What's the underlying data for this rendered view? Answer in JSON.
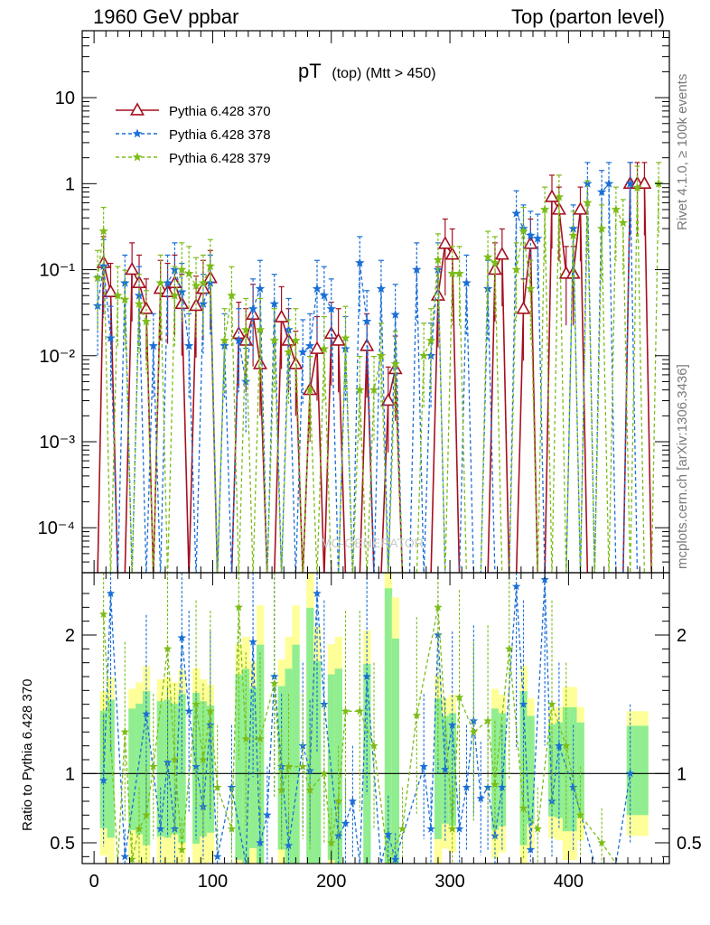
{
  "header": {
    "left": "1960 GeV ppbar",
    "right": "Top (parton level)"
  },
  "side": {
    "top": "Rivet 4.1.0, ≥ 100k events",
    "bottom": "mcplots.cern.ch [arXiv:1306.3436]"
  },
  "colors": {
    "s370": "#a50f1f",
    "s378": "#1a6fd6",
    "s379": "#7cbc18",
    "band_green": "#90ee90",
    "band_yellow": "#ffff99"
  },
  "chart_data": [
    {
      "type": "line",
      "panel": "main",
      "title_main": "pT",
      "title_sub": "(top) (Mtt > 450)",
      "yscale": "log",
      "xlim": [
        -10,
        485
      ],
      "ylim": [
        3e-05,
        60
      ],
      "x_ticks": [
        "0",
        "100",
        "200",
        "300",
        "400"
      ],
      "y_ticks": [
        "10",
        "1",
        "10⁻¹",
        "10⁻²",
        "10⁻³",
        "10⁻⁴"
      ],
      "legend": [
        "Pythia 6.428 370",
        "Pythia 6.428 378",
        "Pythia 6.428 379"
      ],
      "watermark": "MC-GENERATOR",
      "series": [
        {
          "name": "Pythia 6.428 370",
          "x": [
            3,
            8,
            14,
            20,
            26,
            32,
            38,
            44,
            50,
            56,
            62,
            68,
            74,
            80,
            86,
            92,
            98,
            104,
            110,
            116,
            122,
            128,
            134,
            140,
            146,
            152,
            158,
            164,
            170,
            176,
            182,
            188,
            194,
            200,
            206,
            212,
            218,
            224,
            230,
            236,
            242,
            248,
            254,
            260,
            266,
            272,
            278,
            284,
            290,
            296,
            302,
            308,
            314,
            320,
            326,
            332,
            338,
            344,
            350,
            356,
            362,
            368,
            374,
            380,
            386,
            392,
            398,
            404,
            410,
            416,
            422,
            428,
            434,
            440,
            446,
            452,
            458,
            464,
            470,
            476
          ],
          "values": [
            0,
            0.12,
            0.055,
            0,
            0,
            0.1,
            0.07,
            0.035,
            0,
            0.06,
            0.055,
            0.07,
            0.04,
            0,
            0.038,
            0.06,
            0.08,
            0,
            0,
            0,
            0.018,
            0.015,
            0.03,
            0.008,
            0,
            0,
            0.028,
            0.015,
            0.008,
            0,
            0.004,
            0.012,
            0,
            0.018,
            0.015,
            0,
            0,
            0,
            0.013,
            0,
            0,
            0.003,
            0.007,
            0,
            0,
            0,
            0,
            0,
            0.05,
            0.2,
            0.15,
            0,
            0,
            0,
            0,
            0,
            0.1,
            0.15,
            0,
            0,
            0.035,
            0.2,
            0,
            0,
            0.7,
            0.5,
            0.09,
            0.09,
            0.5,
            0,
            0,
            0,
            0,
            0,
            0,
            1,
            1,
            1,
            0,
            0
          ]
        },
        {
          "name": "Pythia 6.428 378",
          "x": [
            3,
            8,
            14,
            20,
            26,
            32,
            38,
            44,
            50,
            56,
            62,
            68,
            74,
            80,
            86,
            92,
            98,
            104,
            110,
            116,
            122,
            128,
            134,
            140,
            146,
            152,
            158,
            164,
            170,
            176,
            182,
            188,
            194,
            200,
            206,
            212,
            218,
            224,
            230,
            236,
            242,
            248,
            254,
            260,
            266,
            272,
            278,
            284,
            290,
            296,
            302,
            308,
            314,
            320,
            326,
            332,
            338,
            344,
            350,
            356,
            362,
            368,
            374,
            380,
            386,
            392,
            398,
            404,
            410,
            416,
            422,
            428,
            434,
            440,
            446,
            452,
            458,
            464,
            470,
            476
          ],
          "values": [
            0.038,
            0.11,
            0.016,
            0,
            0.07,
            0,
            0.05,
            0,
            0.013,
            0,
            0.07,
            0.1,
            0.055,
            0.013,
            0,
            0.04,
            0.07,
            0,
            0.013,
            0,
            0.015,
            0.005,
            0.035,
            0.06,
            0,
            0.04,
            0,
            0.02,
            0,
            0.011,
            0.013,
            0.06,
            0.05,
            0.035,
            0,
            0.012,
            0,
            0.12,
            0.025,
            0,
            0.06,
            0,
            0.03,
            0,
            0,
            0.1,
            0,
            0.01,
            0.1,
            0,
            0,
            0,
            0.07,
            0,
            0,
            0.06,
            0,
            0,
            0,
            0.45,
            0.3,
            0.25,
            0.23,
            0,
            0,
            0,
            0,
            0.3,
            0,
            1,
            0,
            0.8,
            1,
            0,
            0,
            1,
            0,
            0,
            0,
            0
          ]
        },
        {
          "name": "Pythia 6.428 379",
          "x": [
            3,
            8,
            14,
            20,
            26,
            32,
            38,
            44,
            50,
            56,
            62,
            68,
            74,
            80,
            86,
            92,
            98,
            104,
            110,
            116,
            122,
            128,
            134,
            140,
            146,
            152,
            158,
            164,
            170,
            176,
            182,
            188,
            194,
            200,
            206,
            212,
            218,
            224,
            230,
            236,
            242,
            248,
            254,
            260,
            266,
            272,
            278,
            284,
            290,
            296,
            302,
            308,
            314,
            320,
            326,
            332,
            338,
            344,
            350,
            356,
            362,
            368,
            374,
            380,
            386,
            392,
            398,
            404,
            410,
            416,
            422,
            428,
            434,
            440,
            446,
            452,
            458,
            464,
            470,
            476
          ],
          "values": [
            0.08,
            0.28,
            0,
            0.05,
            0.045,
            0,
            0.04,
            0.025,
            0,
            0.07,
            0,
            0.05,
            0.1,
            0.09,
            0.065,
            0.07,
            0.11,
            0,
            0.015,
            0.05,
            0,
            0.02,
            0,
            0.02,
            0,
            0.015,
            0,
            0.011,
            0.015,
            0,
            0.004,
            0,
            0.012,
            0,
            0,
            0.016,
            0,
            0.004,
            0,
            0.004,
            0.01,
            0,
            0.008,
            0,
            0,
            0,
            0.01,
            0.015,
            0.13,
            0,
            0.09,
            0.09,
            0,
            0,
            0,
            0.14,
            0.12,
            0,
            0,
            0.1,
            0.28,
            0.06,
            0,
            0.5,
            0,
            0.7,
            0,
            0.25,
            0,
            0.6,
            0,
            0.3,
            0,
            0.5,
            0.35,
            0,
            0.9,
            0,
            0,
            1
          ]
        }
      ]
    },
    {
      "type": "line",
      "panel": "ratio",
      "ylabel": "Ratio to Pythia 6.428 370",
      "xlim": [
        -10,
        485
      ],
      "ylim": [
        0.35,
        2.45
      ],
      "y_ticks": [
        "2",
        "1",
        "0.5"
      ],
      "reference": 1,
      "series": [
        {
          "name": "Pythia 6.428 378",
          "x": [
            8,
            14,
            26,
            44,
            56,
            62,
            68,
            74,
            80,
            86,
            92,
            98,
            104,
            116,
            128,
            134,
            140,
            146,
            152,
            158,
            164,
            176,
            182,
            188,
            194,
            206,
            212,
            218,
            224,
            230,
            242,
            248,
            254,
            278,
            284,
            290,
            296,
            302,
            308,
            314,
            320,
            326,
            332,
            338,
            344,
            356,
            362,
            368,
            380,
            386,
            392,
            404,
            422,
            440,
            452
          ],
          "values": [
            0.95,
            2.3,
            0.4,
            1.43,
            0.6,
            1.08,
            0.6,
            1.98,
            1.45,
            1.05,
            0.76,
            1.35,
            0.4,
            0.9,
            0.35,
            1.95,
            0.5,
            0.7,
            1.7,
            1.05,
            0.48,
            1.2,
            1.02,
            2.3,
            1.5,
            0.55,
            0.64,
            0.8,
            0.35,
            1.7,
            0.35,
            0.56,
            0.38,
            1.05,
            0.6,
            2.0,
            1.03,
            1.35,
            0.6,
            0.9,
            1.38,
            0.82,
            0.9,
            0.55,
            0.9,
            2.35,
            1.5,
            0.45,
            2.4,
            0.8,
            1.2,
            0.9,
            0.35,
            0.35,
            1.0
          ]
        },
        {
          "name": "Pythia 6.428 379",
          "x": [
            8,
            20,
            26,
            32,
            38,
            44,
            50,
            62,
            68,
            74,
            86,
            92,
            98,
            104,
            116,
            122,
            128,
            140,
            152,
            158,
            164,
            176,
            182,
            194,
            200,
            206,
            212,
            224,
            236,
            248,
            260,
            272,
            290,
            302,
            308,
            320,
            332,
            338,
            350,
            362,
            374,
            386,
            398,
            410,
            428,
            440,
            452
          ],
          "values": [
            2.15,
            0.35,
            1.3,
            0.38,
            0.6,
            0.7,
            1.05,
            1.9,
            1.1,
            0.45,
            1.5,
            1.1,
            1.45,
            0.9,
            0.6,
            2.2,
            1.25,
            1.25,
            1.65,
            0.88,
            1.05,
            1.05,
            0.88,
            1.0,
            0.5,
            0.8,
            1.45,
            1.45,
            1.2,
            0.35,
            0.6,
            1.42,
            2.2,
            0.6,
            1.55,
            1.3,
            1.38,
            0.92,
            1.9,
            0.75,
            0.6,
            1.5,
            1.2,
            0.7,
            0.5,
            0.35,
            0.35
          ]
        }
      ]
    }
  ]
}
